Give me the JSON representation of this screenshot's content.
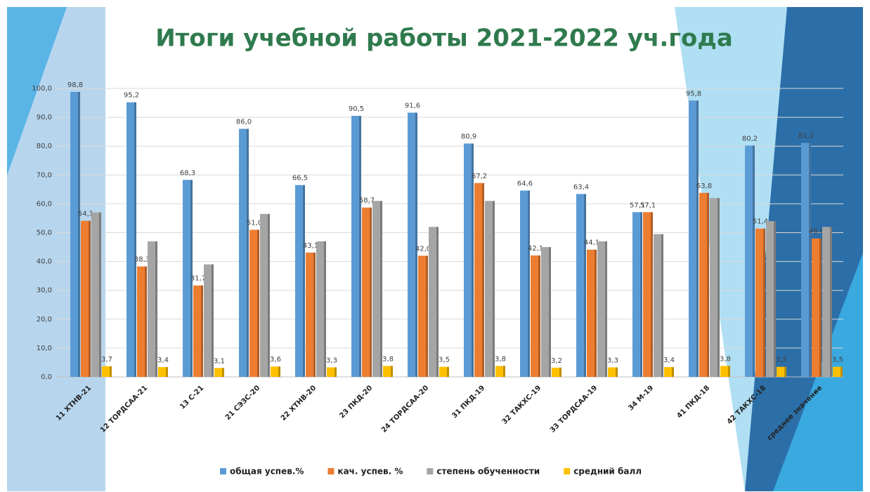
{
  "chart_data": {
    "type": "bar",
    "title": "Итоги учебной работы 2021-2022 уч.года",
    "categories": [
      "11 ХТНВ-21",
      "12 ТОРДСАА-21",
      "13 С-21",
      "21 СЭЗС-20",
      "22 ХТНВ-20",
      "23 ПКД-20",
      "24 ТОРДСАА-20",
      "31 ПКД-19",
      "32 ТАКХС-19",
      "33 ТОРДСАА-19",
      "34 М-19",
      "41 ПКД-18",
      "42 ТАКХС-18",
      "среднее значение"
    ],
    "series": [
      {
        "name": "общая успев.%",
        "color": "#5b9bd5",
        "values": [
          98.8,
          95.2,
          68.3,
          86.0,
          66.5,
          90.5,
          91.6,
          80.9,
          64.6,
          63.4,
          57.1,
          95.8,
          80.2,
          81.1
        ],
        "value_labels": [
          "98,8",
          "95,2",
          "68,3",
          "86,0",
          "66,5",
          "90,5",
          "91,6",
          "80,9",
          "64,6",
          "63,4",
          "57,1",
          "95,8",
          "80,2",
          "81,1"
        ]
      },
      {
        "name": "кач. успев. %",
        "color": "#ed7d31",
        "values": [
          54.1,
          38.3,
          31.7,
          51.0,
          43.1,
          58.7,
          42.0,
          67.2,
          42.1,
          44.1,
          57.1,
          63.8,
          51.4,
          48.0
        ],
        "value_labels": [
          "54,1",
          "38,3",
          "31,7",
          "51,0",
          "43,1",
          "58,7",
          "42,0",
          "67,2",
          "42,1",
          "44,1",
          "57,1",
          "63,8",
          "51,4",
          "48,0"
        ]
      },
      {
        "name": "степень обученности",
        "color": "#a5a5a5",
        "values": [
          57,
          47,
          39,
          56.5,
          47,
          61,
          52,
          61,
          45,
          47,
          49.5,
          62,
          54,
          52
        ]
      },
      {
        "name": "средний балл",
        "color": "#ffc000",
        "values": [
          3.7,
          3.4,
          3.1,
          3.6,
          3.3,
          3.8,
          3.5,
          3.8,
          3.2,
          3.3,
          3.4,
          3.8,
          3.5,
          3.5
        ],
        "value_labels": [
          "3,7",
          "3,4",
          "3,1",
          "3,6",
          "3,3",
          "3,8",
          "3,5",
          "3,8",
          "3,2",
          "3,3",
          "3,4",
          "3,8",
          "3,5",
          "3,5"
        ]
      }
    ],
    "ylim": [
      0,
      100
    ],
    "yticks": [
      {
        "value": 0,
        "label": "0,0"
      },
      {
        "value": 10,
        "label": "10,0"
      },
      {
        "value": 20,
        "label": "20,0"
      },
      {
        "value": 30,
        "label": "30,0"
      },
      {
        "value": 40,
        "label": "40,0"
      },
      {
        "value": 50,
        "label": "50,0"
      },
      {
        "value": 60,
        "label": "60,0"
      },
      {
        "value": 70,
        "label": "70,0"
      },
      {
        "value": 80,
        "label": "80,0"
      },
      {
        "value": 90,
        "label": "90,0"
      },
      {
        "value": 100,
        "label": "100,0"
      }
    ],
    "grid": true
  }
}
